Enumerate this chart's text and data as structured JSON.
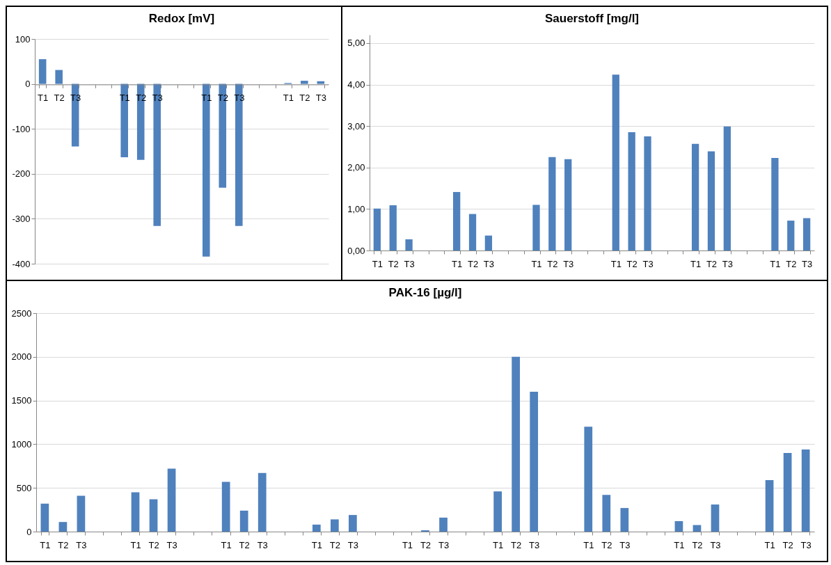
{
  "chart_data": [
    {
      "type": "bar",
      "title": "Redox [mV]",
      "categories": [
        "T1",
        "T2",
        "T3",
        null,
        null,
        "T1",
        "T2",
        "T3",
        null,
        null,
        "T1",
        "T2",
        "T3",
        null,
        null,
        "T1",
        "T2",
        "T3"
      ],
      "values": [
        55,
        31,
        -139,
        null,
        null,
        -163,
        -169,
        -316,
        null,
        null,
        -384,
        -231,
        -316,
        null,
        null,
        2,
        7,
        6
      ],
      "color": "#4f81bd",
      "ylim": [
        -400,
        100
      ],
      "yticks": [
        -400,
        -300,
        -200,
        -100,
        0,
        100
      ],
      "grid": "y"
    },
    {
      "type": "bar",
      "title": "Sauerstoff [mg/l]",
      "categories": [
        "T1",
        "T2",
        "T3",
        null,
        null,
        "T1",
        "T2",
        "T3",
        null,
        null,
        "T1",
        "T2",
        "T3",
        null,
        null,
        "T1",
        "T2",
        "T3",
        null,
        null,
        "T1",
        "T2",
        "T3",
        null,
        null,
        "T1",
        "T2",
        "T3"
      ],
      "values": [
        1.01,
        1.09,
        0.27,
        null,
        null,
        1.41,
        0.88,
        0.36,
        null,
        null,
        1.1,
        2.25,
        2.2,
        null,
        null,
        4.24,
        2.85,
        2.75,
        null,
        null,
        2.57,
        2.39,
        2.99,
        null,
        null,
        2.23,
        0.72,
        0.78
      ],
      "color": "#4f81bd",
      "ylim": [
        0,
        5.2
      ],
      "yticks": [
        {
          "value": 0,
          "label": "0,00"
        },
        {
          "value": 1,
          "label": "1,00"
        },
        {
          "value": 2,
          "label": "2,00"
        },
        {
          "value": 3,
          "label": "3,00"
        },
        {
          "value": 4,
          "label": "4,00"
        },
        {
          "value": 5,
          "label": "5,00"
        }
      ],
      "grid": "y"
    },
    {
      "type": "bar",
      "title": "PAK-16 [µg/l]",
      "categories": [
        "T1",
        "T2",
        "T3",
        null,
        null,
        "T1",
        "T2",
        "T3",
        null,
        null,
        "T1",
        "T2",
        "T3",
        null,
        null,
        "T1",
        "T2",
        "T3",
        null,
        null,
        "T1",
        "T2",
        "T3",
        null,
        null,
        "T1",
        "T2",
        "T3",
        null,
        null,
        "T1",
        "T2",
        "T3",
        null,
        null,
        "T1",
        "T2",
        "T3",
        null,
        null,
        "T1",
        "T2",
        "T3"
      ],
      "values": [
        320,
        110,
        410,
        null,
        null,
        450,
        370,
        720,
        null,
        null,
        570,
        240,
        670,
        null,
        null,
        80,
        140,
        190,
        null,
        null,
        0,
        15,
        160,
        null,
        null,
        460,
        2000,
        1600,
        null,
        null,
        1200,
        420,
        270,
        null,
        null,
        120,
        75,
        310,
        null,
        null,
        590,
        900,
        940
      ],
      "color": "#4f81bd",
      "ylim": [
        0,
        2500
      ],
      "yticks": [
        0,
        500,
        1000,
        1500,
        2000,
        2500
      ],
      "grid": "y"
    }
  ]
}
